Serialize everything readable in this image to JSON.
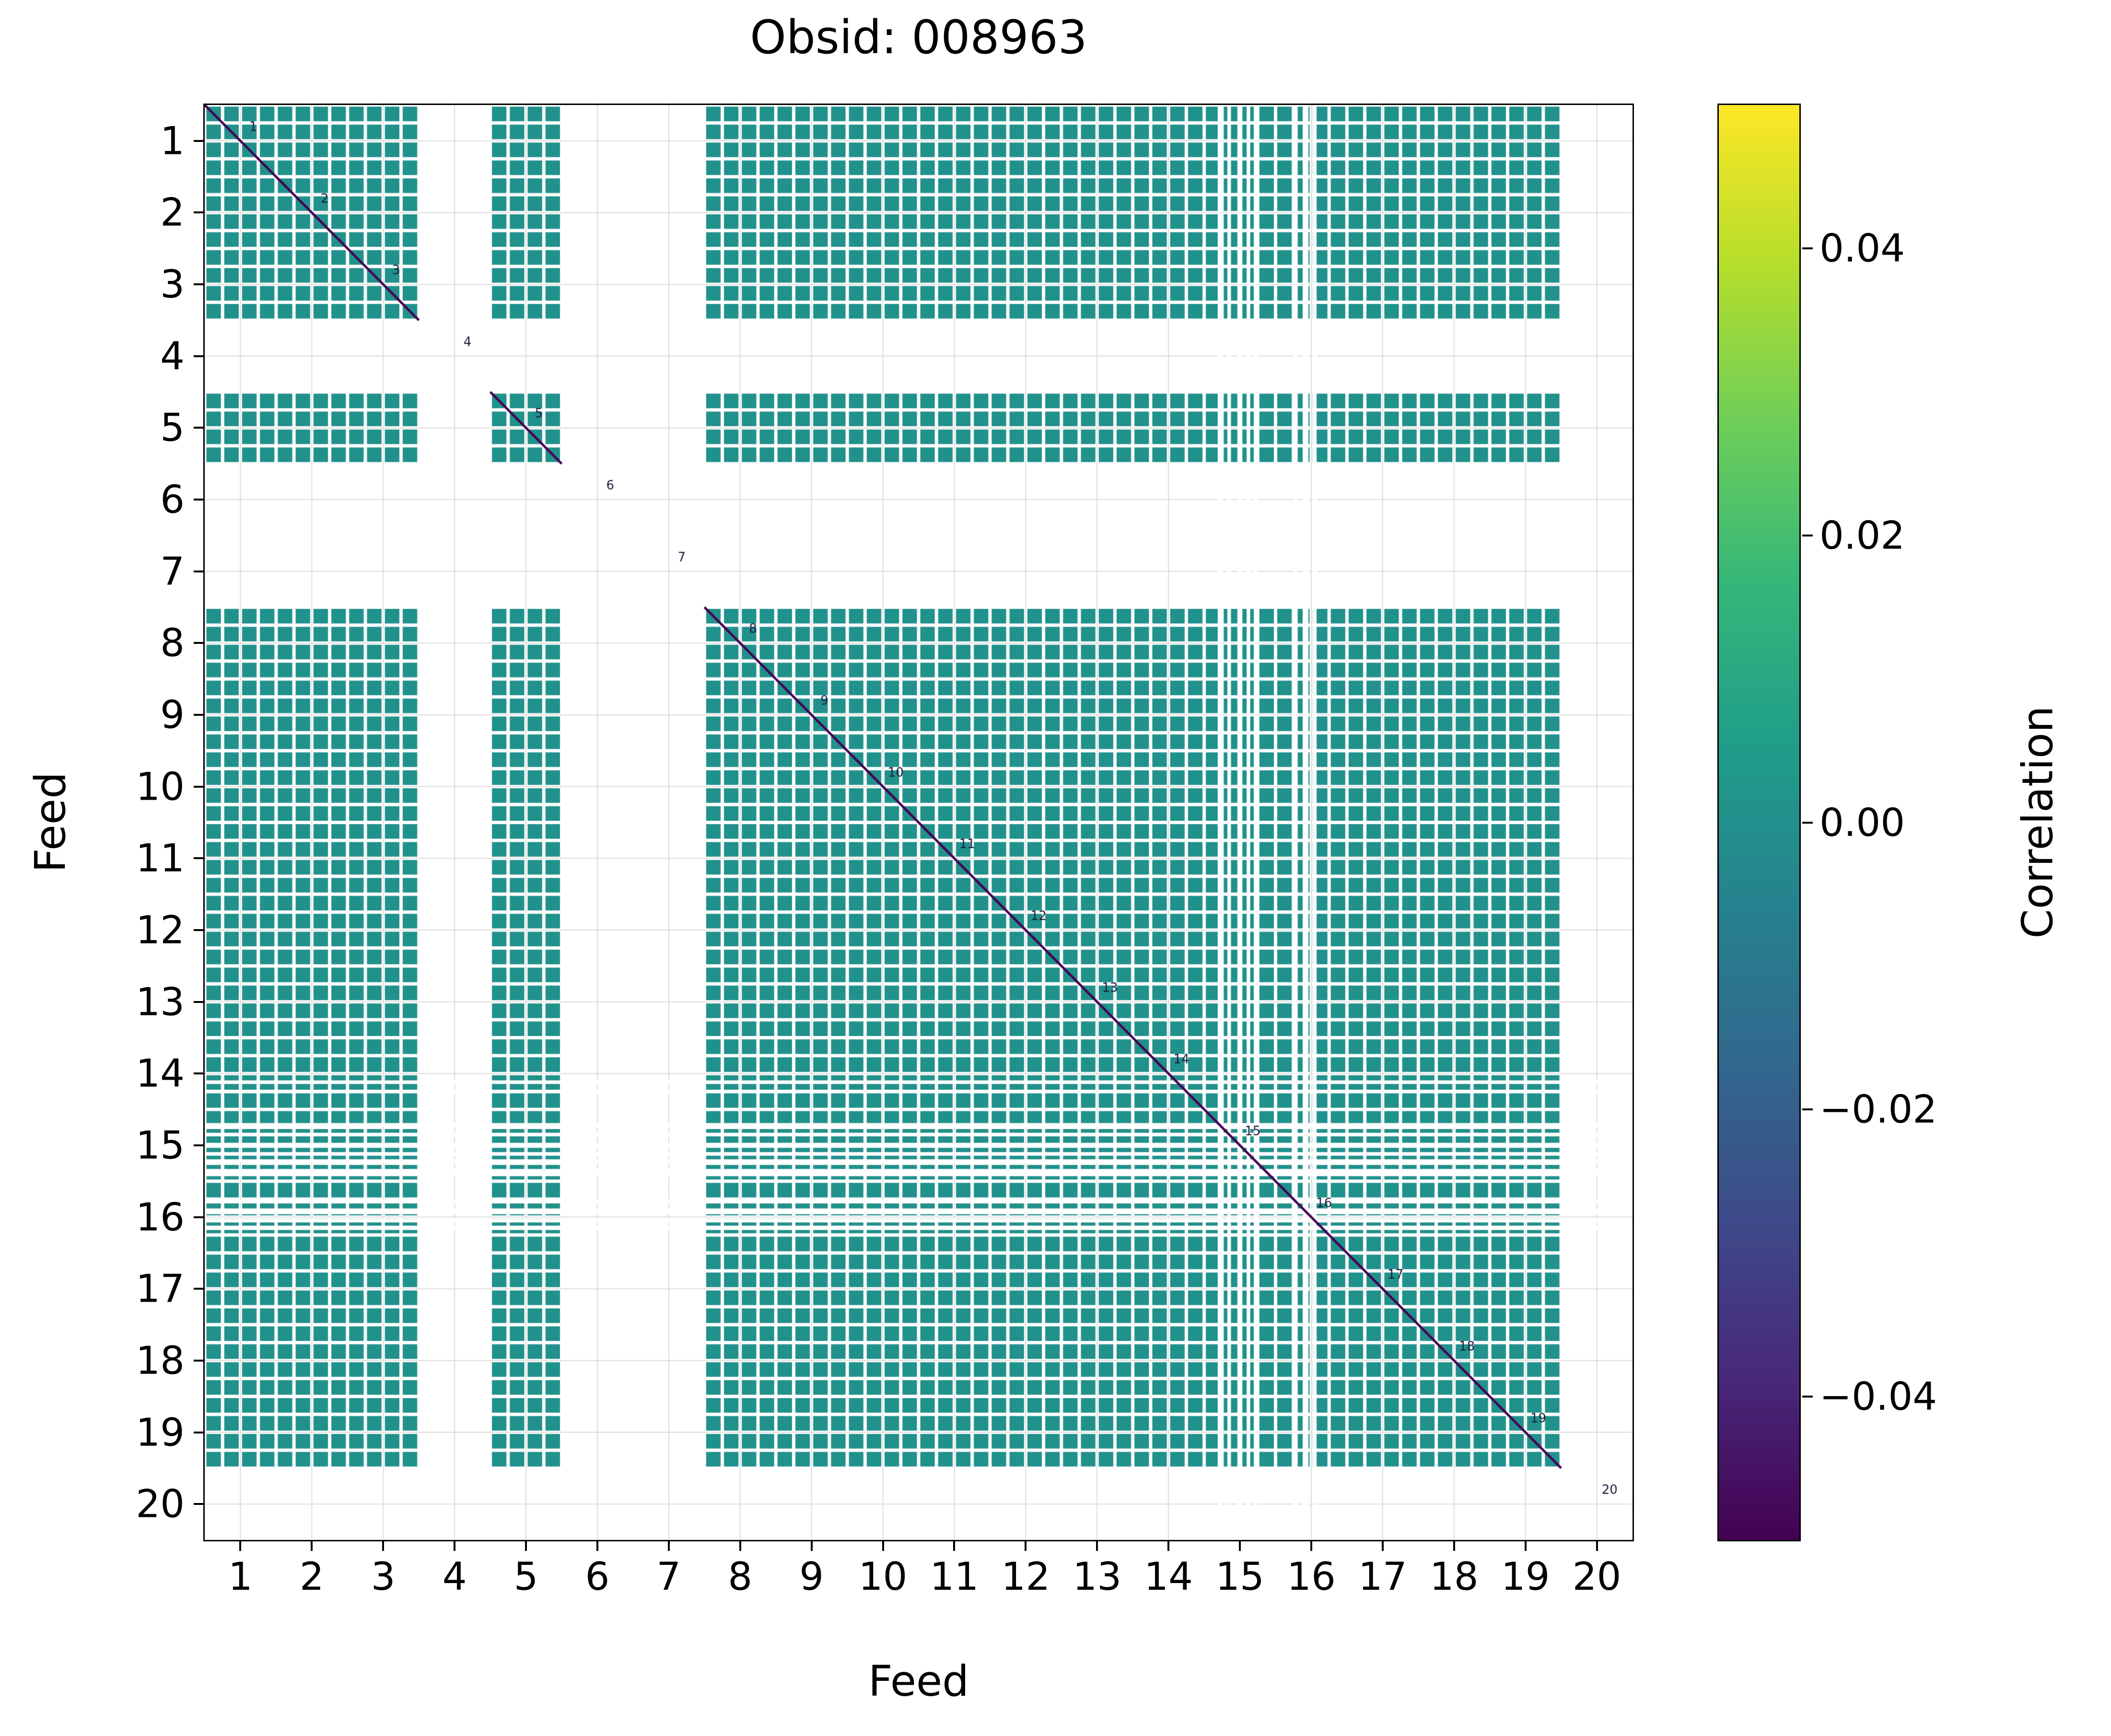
{
  "title": "Obsid: 008963",
  "axes": {
    "xlabel": "Feed",
    "ylabel": "Feed",
    "x_tick_labels": [
      "1",
      "2",
      "3",
      "4",
      "5",
      "6",
      "7",
      "8",
      "9",
      "10",
      "11",
      "12",
      "13",
      "14",
      "15",
      "16",
      "17",
      "18",
      "19",
      "20"
    ],
    "y_tick_labels": [
      "1",
      "2",
      "3",
      "4",
      "5",
      "6",
      "7",
      "8",
      "9",
      "10",
      "11",
      "12",
      "13",
      "14",
      "15",
      "16",
      "17",
      "18",
      "19",
      "20"
    ]
  },
  "colorbar": {
    "label": "Correlation",
    "tick_labels": [
      "0.04",
      "0.02",
      "0.00",
      "−0.02",
      "−0.04"
    ],
    "tick_values": [
      0.04,
      0.02,
      0.0,
      -0.02,
      -0.04
    ],
    "vmin": -0.05,
    "vmax": 0.05,
    "colormap": "viridis",
    "colormap_stops": [
      "#440154",
      "#482878",
      "#3e4a89",
      "#31688e",
      "#26828e",
      "#1f9e89",
      "#35b779",
      "#6ece58",
      "#b5de2b",
      "#fde725"
    ]
  },
  "chart_data": {
    "type": "heatmap",
    "title": "Obsid: 008963",
    "xlabel": "Feed",
    "ylabel": "Feed",
    "feeds": [
      1,
      2,
      3,
      4,
      5,
      6,
      7,
      8,
      9,
      10,
      11,
      12,
      13,
      14,
      15,
      16,
      17,
      18,
      19,
      20
    ],
    "present_feeds": [
      1,
      2,
      3,
      5,
      8,
      9,
      10,
      11,
      12,
      13,
      14,
      15,
      16,
      17,
      18,
      19
    ],
    "missing_feeds": [
      4,
      6,
      7,
      20
    ],
    "subbands_per_feed": 4,
    "cell_value_approx": 0.0,
    "cell_color": "#21918c",
    "diagonal_color": "#440154",
    "diag_labels": [
      "1",
      "2",
      "3",
      "4",
      "5",
      "6",
      "7",
      "8",
      "9",
      "10",
      "11",
      "12",
      "13",
      "14",
      "15",
      "16",
      "17",
      "18",
      "19",
      "20"
    ],
    "diag_label_color": "#1c1c3a",
    "grid_color": "#dcdcdc",
    "background_color": "#ffffff",
    "missing_stripes": {
      "units": "feed-grid coordinate (feed n spans [n-1, n])",
      "cols": [
        {
          "c": 14.22,
          "w": 0.06
        },
        {
          "c": 14.35,
          "w": 0.05
        },
        {
          "c": 14.5,
          "w": 0.07
        },
        {
          "c": 14.62,
          "w": 0.05
        },
        {
          "c": 14.72,
          "w": 0.05
        },
        {
          "c": 15.28,
          "w": 0.06
        },
        {
          "c": 15.42,
          "w": 0.08
        },
        {
          "c": 15.55,
          "w": 0.05
        }
      ],
      "rows": [
        {
          "c": 13.62,
          "w": 0.05
        },
        {
          "c": 13.75,
          "w": 0.05
        },
        {
          "c": 14.22,
          "w": 0.06
        },
        {
          "c": 14.35,
          "w": 0.05
        },
        {
          "c": 14.5,
          "w": 0.07
        },
        {
          "c": 14.62,
          "w": 0.05
        },
        {
          "c": 14.72,
          "w": 0.05
        },
        {
          "c": 14.88,
          "w": 0.1
        },
        {
          "c": 15.28,
          "w": 0.06
        },
        {
          "c": 15.42,
          "w": 0.08
        },
        {
          "c": 15.55,
          "w": 0.05
        },
        {
          "c": 15.65,
          "w": 0.06
        }
      ]
    }
  }
}
